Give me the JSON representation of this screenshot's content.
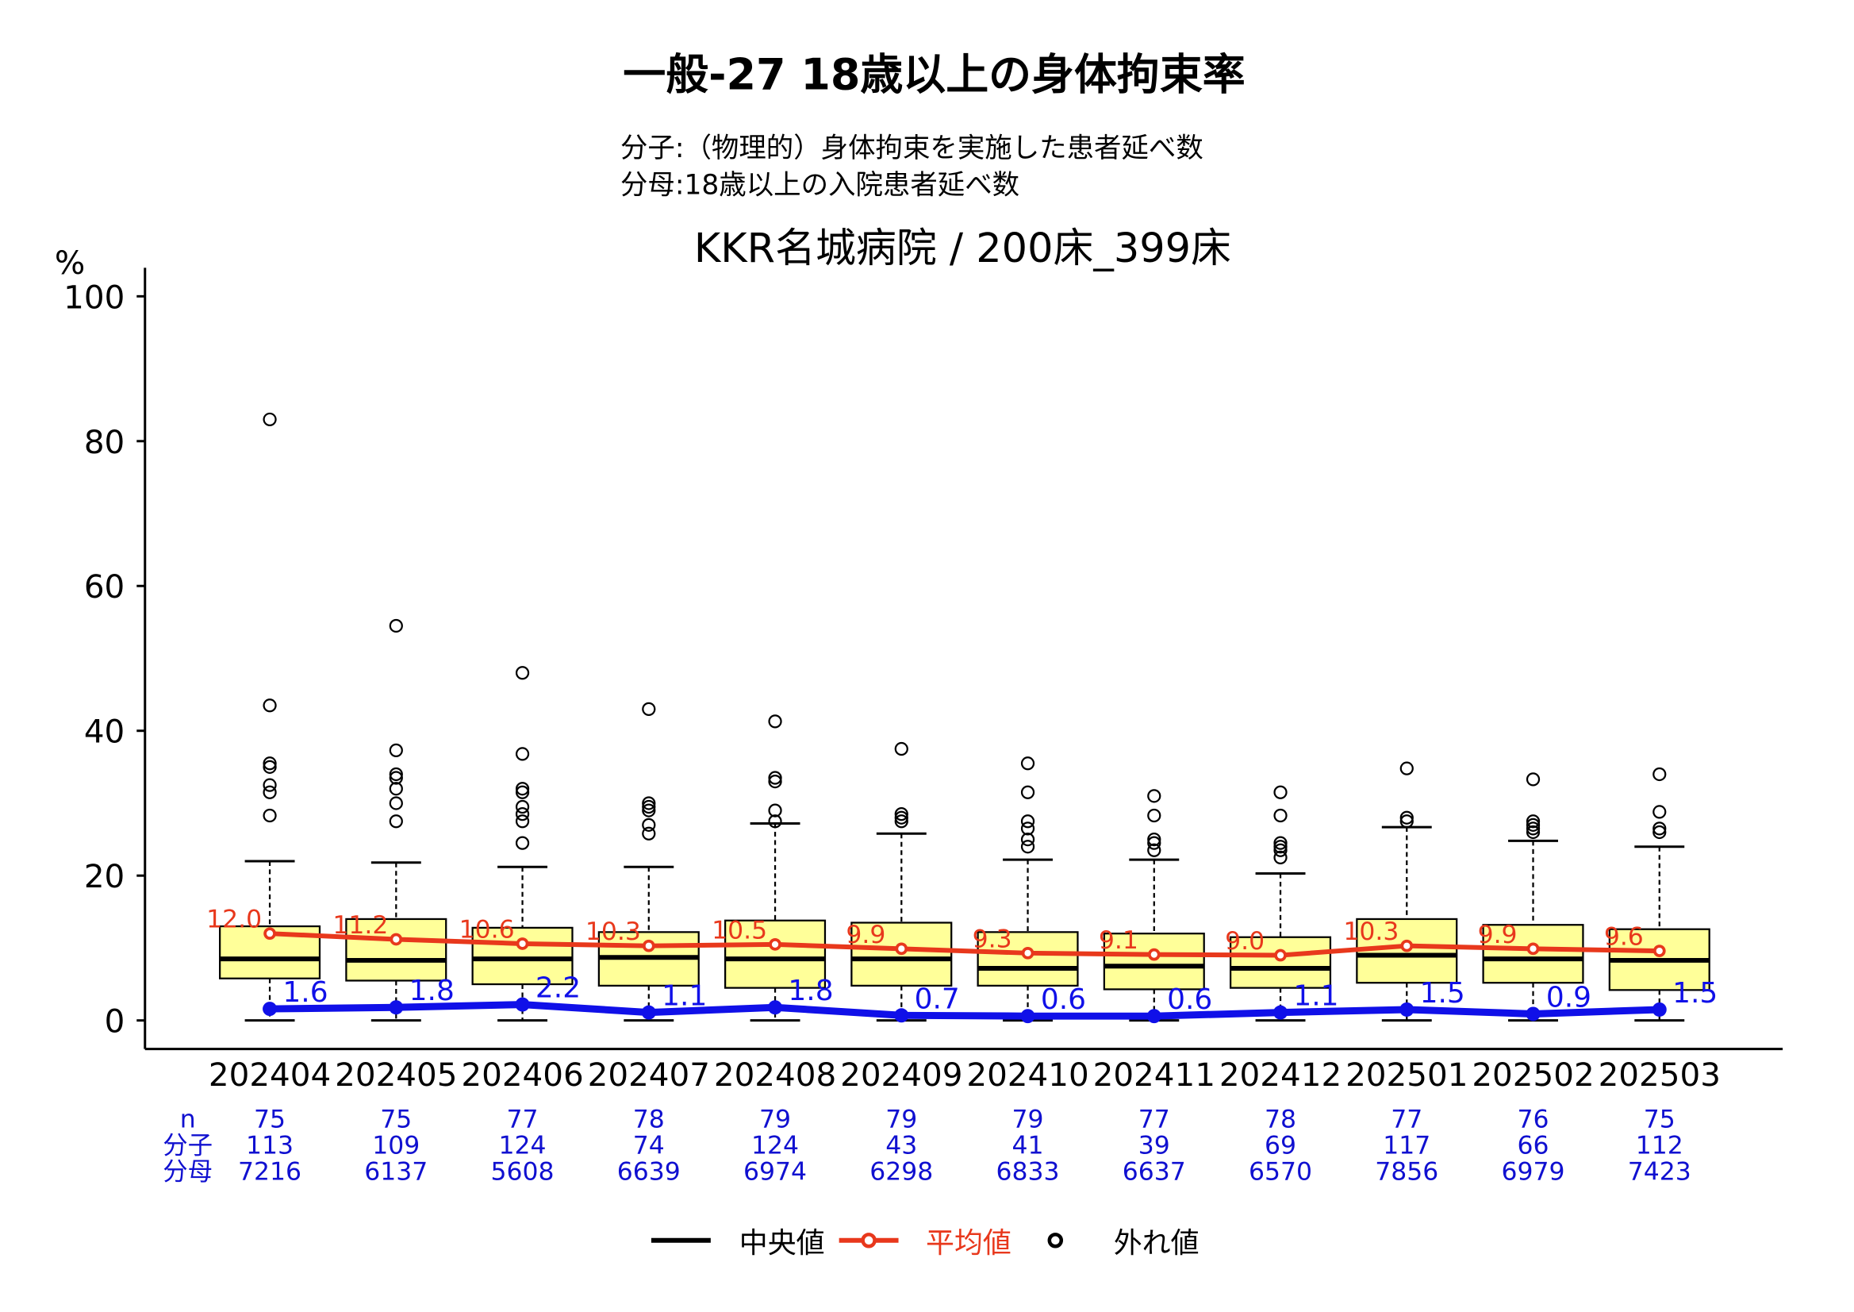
{
  "chart_data": {
    "type": "boxplot",
    "title": "一般-27 18歳以上の身体拘束率",
    "subtitle_lines": [
      "分子:（物理的）身体拘束を実施した患者延べ数",
      "分母:18歳以上の入院患者延べ数"
    ],
    "facility": "KKR名城病院 / 200床_399床",
    "ylabel": "%",
    "ylim": [
      0,
      100
    ],
    "yticks": [
      "0",
      "20",
      "40",
      "60",
      "80",
      "100"
    ],
    "categories": [
      "202404",
      "202405",
      "202406",
      "202407",
      "202408",
      "202409",
      "202410",
      "202411",
      "202412",
      "202501",
      "202502",
      "202503"
    ],
    "boxes": [
      {
        "q1": 5.8,
        "median": 8.5,
        "q3": 13.0,
        "lo": 0,
        "hi": 22.0,
        "outliers": [
          28.3,
          31.5,
          32.5,
          35,
          35.5,
          43.5,
          83
        ]
      },
      {
        "q1": 5.5,
        "median": 8.3,
        "q3": 14.0,
        "lo": 0,
        "hi": 21.8,
        "outliers": [
          27.5,
          30,
          32,
          33.5,
          34,
          37.3,
          54.5
        ]
      },
      {
        "q1": 5.0,
        "median": 8.5,
        "q3": 12.8,
        "lo": 0,
        "hi": 21.2,
        "outliers": [
          24.5,
          27.5,
          28.5,
          29.5,
          31.5,
          32,
          36.8,
          48
        ]
      },
      {
        "q1": 4.8,
        "median": 8.7,
        "q3": 12.2,
        "lo": 0,
        "hi": 21.2,
        "outliers": [
          25.8,
          27,
          29,
          29.5,
          30,
          43
        ]
      },
      {
        "q1": 4.5,
        "median": 8.5,
        "q3": 13.8,
        "lo": 0,
        "hi": 27.2,
        "outliers": [
          27.5,
          29,
          33,
          33.5,
          41.3
        ]
      },
      {
        "q1": 4.8,
        "median": 8.5,
        "q3": 13.5,
        "lo": 0,
        "hi": 25.8,
        "outliers": [
          27.5,
          28,
          28.5,
          37.5
        ]
      },
      {
        "q1": 4.8,
        "median": 7.2,
        "q3": 12.2,
        "lo": 0,
        "hi": 22.2,
        "outliers": [
          24,
          25,
          26.5,
          27.5,
          31.5,
          35.5
        ]
      },
      {
        "q1": 4.3,
        "median": 7.5,
        "q3": 12.0,
        "lo": 0,
        "hi": 22.2,
        "outliers": [
          23.5,
          24.5,
          25,
          28.3,
          31
        ]
      },
      {
        "q1": 4.5,
        "median": 7.2,
        "q3": 11.5,
        "lo": 0,
        "hi": 20.3,
        "outliers": [
          22.5,
          23.5,
          24,
          24.5,
          28.3,
          31.5
        ]
      },
      {
        "q1": 5.2,
        "median": 9.0,
        "q3": 14.0,
        "lo": 0,
        "hi": 26.7,
        "outliers": [
          27.5,
          28,
          34.8
        ]
      },
      {
        "q1": 5.2,
        "median": 8.5,
        "q3": 13.2,
        "lo": 0,
        "hi": 24.8,
        "outliers": [
          26,
          26.5,
          27,
          27.5,
          33.3
        ]
      },
      {
        "q1": 4.2,
        "median": 8.3,
        "q3": 12.6,
        "lo": 0,
        "hi": 24.0,
        "outliers": [
          26,
          26.5,
          28.8,
          34
        ]
      }
    ],
    "mean_series": {
      "name": "平均値",
      "values": [
        12.0,
        11.2,
        10.6,
        10.3,
        10.5,
        9.9,
        9.3,
        9.1,
        9.0,
        10.3,
        9.9,
        9.6
      ],
      "labels": [
        "12.0",
        "11.2",
        "10.6",
        "10.3",
        "10.5",
        "9.9",
        "9.3",
        "9.1",
        "9.0",
        "10.3",
        "9.9",
        "9.6"
      ],
      "color": "#e8381c"
    },
    "hospital_series": {
      "values": [
        1.6,
        1.8,
        2.2,
        1.1,
        1.8,
        0.7,
        0.6,
        0.6,
        1.1,
        1.5,
        0.9,
        1.5
      ],
      "labels": [
        "1.6",
        "1.8",
        "2.2",
        "1.1",
        "1.8",
        "0.7",
        "0.6",
        "0.6",
        "1.1",
        "1.5",
        "0.9",
        "1.5"
      ],
      "color": "#1010e8"
    },
    "table": {
      "row_labels": [
        "n",
        "分子",
        "分母"
      ],
      "n": [
        "75",
        "75",
        "77",
        "78",
        "79",
        "79",
        "79",
        "77",
        "78",
        "77",
        "76",
        "75"
      ],
      "numerator": [
        "113",
        "109",
        "124",
        "74",
        "124",
        "43",
        "41",
        "39",
        "69",
        "117",
        "66",
        "112"
      ],
      "denominator": [
        "7216",
        "6137",
        "5608",
        "6639",
        "6974",
        "6298",
        "6833",
        "6637",
        "6570",
        "7856",
        "6979",
        "7423"
      ]
    },
    "legend": {
      "median": "中央値",
      "mean": "平均値",
      "outlier": "外れ値",
      "placement": "bottom"
    },
    "box_fill": "#ffff99"
  }
}
